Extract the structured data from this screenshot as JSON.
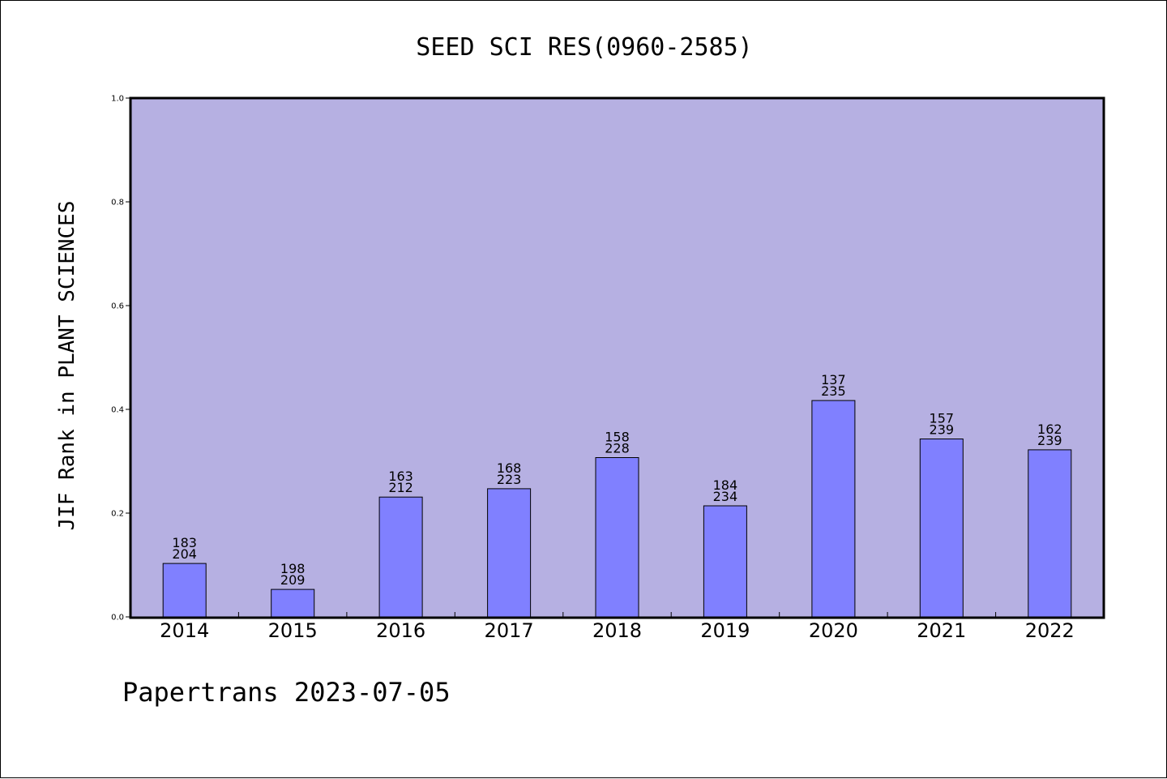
{
  "chart_data": {
    "type": "bar",
    "title": "SEED SCI RES(0960-2585)",
    "xlabel": "",
    "ylabel": "JIF Rank in PLANT SCIENCES",
    "categories": [
      "2014",
      "2015",
      "2016",
      "2017",
      "2018",
      "2019",
      "2020",
      "2021",
      "2022"
    ],
    "values": [
      0.103,
      0.053,
      0.231,
      0.247,
      0.307,
      0.214,
      0.417,
      0.343,
      0.322
    ],
    "ranks": [
      "183",
      "198",
      "163",
      "168",
      "158",
      "184",
      "137",
      "157",
      "162"
    ],
    "totals": [
      "204",
      "209",
      "212",
      "223",
      "228",
      "234",
      "235",
      "239",
      "239"
    ],
    "ylim": [
      0,
      1.0
    ],
    "yticks": [
      "0.0",
      "0.2",
      "0.4",
      "0.6",
      "0.8",
      "1.0"
    ],
    "grid": false,
    "colors": {
      "plot_background": "#b6b0e2",
      "bar_fill": "#8080ff",
      "bar_stroke": "#000000"
    }
  },
  "footer": {
    "text": "Papertrans 2023-07-05"
  }
}
